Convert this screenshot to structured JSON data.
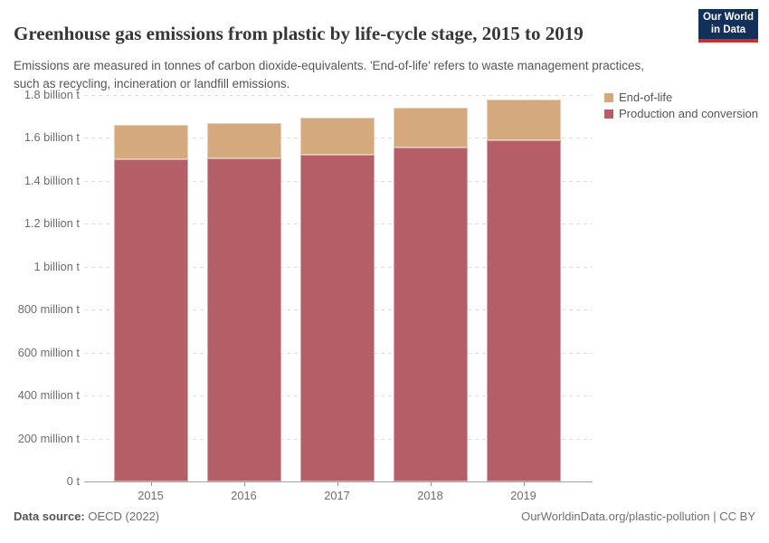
{
  "header": {
    "title": "Greenhouse gas emissions from plastic by life-cycle stage, 2015 to 2019",
    "subtitle": "Emissions are measured in tonnes of carbon dioxide-equivalents. 'End-of-life' refers to waste management practices, such as recycling, incineration or landfill emissions.",
    "logo": {
      "line1": "Our World",
      "line2": "in Data"
    }
  },
  "chart_data": {
    "type": "bar",
    "stacked": true,
    "title": "Greenhouse gas emissions from plastic by life-cycle stage, 2015 to 2019",
    "unit": "tonnes of carbon dioxide-equivalents",
    "categories": [
      "2015",
      "2016",
      "2017",
      "2018",
      "2019"
    ],
    "series": [
      {
        "name": "Production and conversion",
        "key": "production",
        "color": "#b45e67",
        "values_million_t": [
          1500,
          1505,
          1520,
          1555,
          1590
        ]
      },
      {
        "name": "End-of-life",
        "key": "end-of-life",
        "color": "#d3a97d",
        "values_million_t": [
          160,
          165,
          175,
          185,
          190
        ]
      }
    ],
    "totals_million_t": [
      1660,
      1670,
      1695,
      1740,
      1780
    ],
    "ylim_million_t": [
      0,
      1800
    ],
    "grid": "dashed-horizontal",
    "legend_position": "top-right",
    "y_ticks": [
      {
        "value": 1800,
        "label": "1.8 billion t"
      },
      {
        "value": 1600,
        "label": "1.6 billion t"
      },
      {
        "value": 1400,
        "label": "1.4 billion t"
      },
      {
        "value": 1200,
        "label": "1.2 billion t"
      },
      {
        "value": 1000,
        "label": "1 billion t"
      },
      {
        "value": 800,
        "label": "800 million t"
      },
      {
        "value": 600,
        "label": "600 million t"
      },
      {
        "value": 400,
        "label": "400 million t"
      },
      {
        "value": 200,
        "label": "200 million t"
      },
      {
        "value": 0,
        "label": "0 t"
      }
    ]
  },
  "legend": {
    "items": [
      {
        "label": "End-of-life",
        "color": "#d3a97d"
      },
      {
        "label": "Production and conversion",
        "color": "#b45e67"
      }
    ]
  },
  "footer": {
    "source_label": "Data source:",
    "source_value": "OECD (2022)",
    "right_text": "OurWorldinData.org/plastic-pollution | CC BY"
  }
}
